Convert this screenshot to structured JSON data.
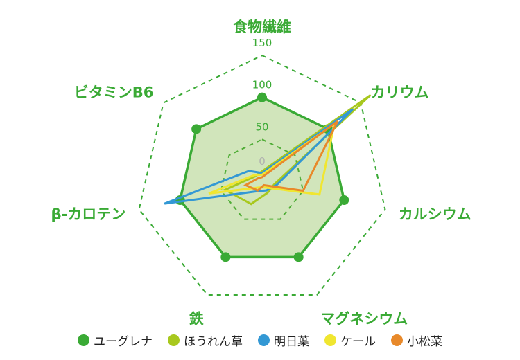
{
  "chart_data": {
    "type": "radar",
    "categories": [
      "食物繊維",
      "カリウム",
      "カルシウム",
      "マグネシウム",
      "鉄",
      "β-カロテン",
      "ビタミンB6"
    ],
    "rlim": [
      0,
      150
    ],
    "ticks": [
      "0",
      "50",
      "100",
      "150"
    ],
    "tick_values": [
      0,
      50,
      100,
      150
    ],
    "grid": true,
    "legend_position": "bottom",
    "series": [
      {
        "name": "ユーグレナ",
        "color": "#3aaa35",
        "values": [
          100,
          100,
          100,
          100,
          100,
          100,
          100
        ]
      },
      {
        "name": "ほうれん草",
        "color": "#a8c81e",
        "values": [
          12,
          165,
          15,
          15,
          30,
          45,
          10
        ]
      },
      {
        "name": "明日葉",
        "color": "#3398d4",
        "values": [
          10,
          138,
          18,
          12,
          13,
          119,
          20
        ]
      },
      {
        "name": "ケール",
        "color": "#f0e630",
        "values": [
          8,
          110,
          70,
          8,
          8,
          65,
          12
        ]
      },
      {
        "name": "小松菜",
        "color": "#e8892a",
        "values": [
          5,
          115,
          50,
          5,
          12,
          20,
          6
        ]
      }
    ]
  }
}
